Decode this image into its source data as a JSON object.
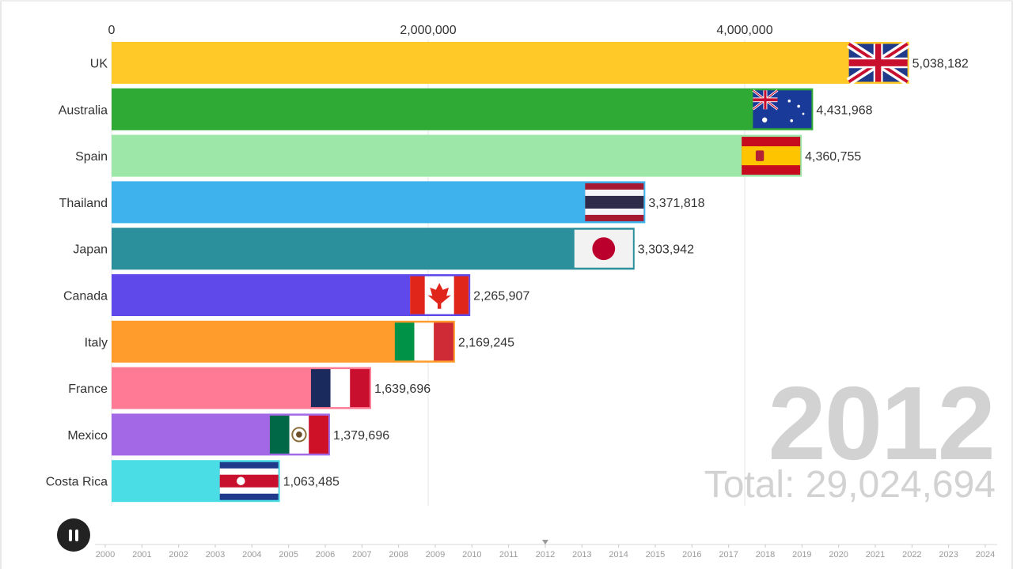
{
  "chart_data": {
    "type": "bar",
    "orientation": "horizontal",
    "categories": [
      "UK",
      "Australia",
      "Spain",
      "Thailand",
      "Japan",
      "Canada",
      "Italy",
      "France",
      "Mexico",
      "Costa Rica"
    ],
    "values": [
      5038182,
      4431968,
      4360755,
      3371818,
      3303942,
      2265907,
      2169245,
      1639696,
      1379696,
      1063485
    ],
    "value_labels": [
      "5,038,182",
      "4,431,968",
      "4,360,755",
      "3,371,818",
      "3,303,942",
      "2,265,907",
      "2,169,245",
      "1,639,696",
      "1,379,696",
      "1,063,485"
    ],
    "colors": [
      "#ffca28",
      "#2eaa35",
      "#9de8a8",
      "#3db2ec",
      "#2b8f9c",
      "#5f49ea",
      "#ff9c2b",
      "#ff7a94",
      "#a368e6",
      "#4bdde6"
    ],
    "flags": [
      "uk-flag-icon",
      "australia-flag-icon",
      "spain-flag-icon",
      "thailand-flag-icon",
      "japan-flag-icon",
      "canada-flag-icon",
      "italy-flag-icon",
      "france-flag-icon",
      "mexico-flag-icon",
      "costa-rica-flag-icon"
    ],
    "xticks": [
      0,
      2000000,
      4000000
    ],
    "xtick_labels": [
      "0",
      "2,000,000",
      "4,000,000"
    ],
    "xlim": [
      0,
      5600000
    ],
    "grid": true,
    "year": "2012",
    "total_label": "Total: 29,024,694"
  },
  "timeline": {
    "years": [
      "2000",
      "2001",
      "2002",
      "2003",
      "2004",
      "2005",
      "2006",
      "2007",
      "2008",
      "2009",
      "2010",
      "2011",
      "2012",
      "2013",
      "2014",
      "2015",
      "2016",
      "2017",
      "2018",
      "2019",
      "2020",
      "2021",
      "2022",
      "2023",
      "2024"
    ],
    "current_year": "2012"
  },
  "controls": {
    "play_state": "pause-icon"
  }
}
